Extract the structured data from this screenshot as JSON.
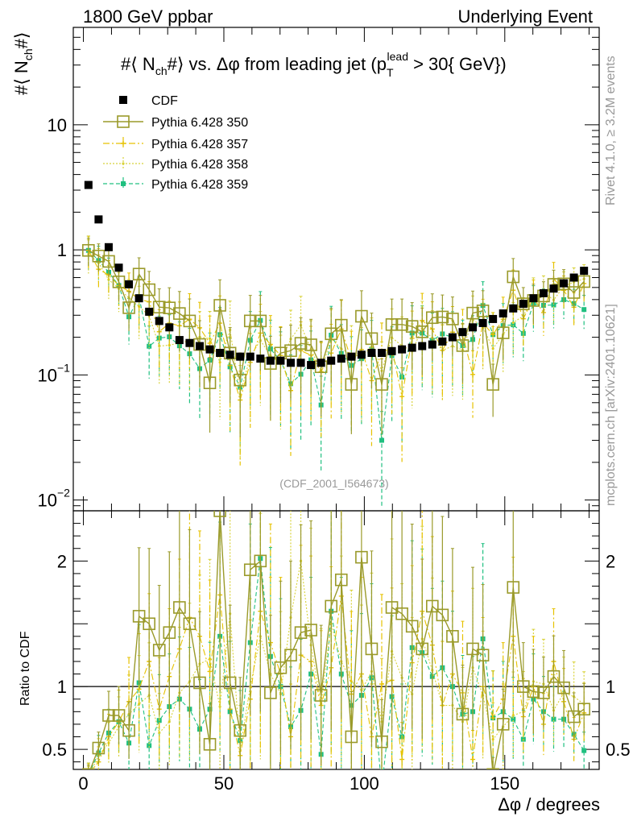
{
  "header": {
    "left": "1800 GeV ppbar",
    "right": "Underlying Event"
  },
  "side": {
    "rivet": "Rivet 4.1.0, ≥ 3.2M events",
    "mcplots": "mcplots.cern.ch [arXiv:2401.10621]"
  },
  "colors": {
    "cdf": "#000000",
    "p350": "#9a9a2a",
    "p357": "#e6c200",
    "p358": "#d8d23a",
    "p359": "#20c080",
    "axis": "#000000",
    "watermark": "#999999"
  },
  "chart_data": {
    "type": "scatter",
    "title": "#⟨ N_ch #⟩ vs. Δφ from leading jet (p_T^lead > 30{ GeV})",
    "title_parts": {
      "a": "#⟨ N",
      "b": "ch",
      "c": "#⟩ vs. Δφ from leading jet  (p",
      "d": "T",
      "e": "lead",
      "f": " > 30{ GeV})"
    },
    "ylabel_parts": {
      "a": "#⟨ N",
      "b": "ch",
      "c": "#⟩"
    },
    "ylabel_ratio": "Ratio to CDF",
    "xlabel": "Δφ / degrees",
    "watermark": "(CDF_2001_I564673)",
    "xlim": [
      -3.6,
      183.6
    ],
    "ylim": [
      0.0082,
      60
    ],
    "ylim_ratio": [
      0.34,
      2.4
    ],
    "yscale": "log",
    "main_ticks": [
      {
        "v": 10,
        "label": "10"
      },
      {
        "v": 1,
        "label": "1"
      }
    ],
    "main_ticks_exp": [
      {
        "v": 0.1,
        "base": "10",
        "exp": "−1"
      },
      {
        "v": 0.01,
        "base": "10",
        "exp": "−2"
      }
    ],
    "ratio_ticks": [
      {
        "v": 2,
        "label": "2"
      },
      {
        "v": 1,
        "label": "1"
      },
      {
        "v": 0.5,
        "label": "0.5"
      }
    ],
    "x_ticks": [
      {
        "v": 0,
        "label": "0"
      },
      {
        "v": 50,
        "label": "50"
      },
      {
        "v": 100,
        "label": "100"
      },
      {
        "v": 150,
        "label": "150"
      }
    ],
    "x": [
      1.8,
      5.4,
      9.0,
      12.6,
      16.2,
      19.8,
      23.4,
      27.0,
      30.6,
      34.2,
      37.8,
      41.4,
      45.0,
      48.6,
      52.2,
      55.8,
      59.4,
      63.0,
      66.6,
      70.2,
      73.8,
      77.4,
      81.0,
      84.6,
      88.2,
      91.8,
      95.4,
      99.0,
      102.6,
      106.2,
      109.8,
      113.4,
      117.0,
      120.6,
      124.2,
      127.8,
      131.4,
      135.0,
      138.6,
      142.2,
      145.8,
      149.4,
      153.0,
      156.6,
      160.2,
      163.8,
      167.4,
      171.0,
      174.6,
      178.2
    ],
    "series": [
      {
        "name": "CDF",
        "key": "cdf",
        "style": "square",
        "values": [
          3.3,
          1.75,
          1.05,
          0.72,
          0.53,
          0.41,
          0.32,
          0.27,
          0.24,
          0.19,
          0.18,
          0.17,
          0.16,
          0.15,
          0.145,
          0.14,
          0.14,
          0.135,
          0.13,
          0.13,
          0.125,
          0.125,
          0.12,
          0.125,
          0.13,
          0.135,
          0.14,
          0.145,
          0.15,
          0.15,
          0.155,
          0.16,
          0.165,
          0.17,
          0.175,
          0.185,
          0.2,
          0.22,
          0.24,
          0.26,
          0.28,
          0.31,
          0.34,
          0.37,
          0.41,
          0.45,
          0.49,
          0.54,
          0.6,
          0.68
        ],
        "errors": [
          0.15,
          0.08,
          0.04,
          0.03,
          0.02,
          0.015,
          0.012,
          0.01,
          0.009,
          0.008,
          0.007,
          0.007,
          0.006,
          0.006,
          0.006,
          0.006,
          0.006,
          0.006,
          0.005,
          0.005,
          0.005,
          0.005,
          0.005,
          0.005,
          0.005,
          0.006,
          0.006,
          0.006,
          0.006,
          0.006,
          0.006,
          0.007,
          0.007,
          0.007,
          0.007,
          0.008,
          0.008,
          0.009,
          0.01,
          0.011,
          0.012,
          0.013,
          0.014,
          0.016,
          0.018,
          0.02,
          0.022,
          0.025,
          0.028,
          0.03
        ]
      },
      {
        "name": "Pythia 6.428 350",
        "key": "p350",
        "style": "open-square",
        "dash": "",
        "ratio": [
          0.3,
          0.51,
          0.77,
          0.77,
          0.65,
          1.56,
          1.5,
          1.29,
          1.43,
          1.63,
          1.5,
          1.03,
          0.54,
          2.4,
          1.03,
          0.65,
          1.93,
          2.0,
          0.95,
          1.15,
          1.25,
          1.43,
          1.45,
          0.93,
          1.64,
          1.85,
          0.6,
          2.03,
          1.3,
          0.56,
          1.63,
          1.58,
          1.48,
          1.3,
          1.64,
          1.57,
          1.4,
          0.78,
          1.3,
          1.25,
          0.3,
          0.7,
          1.79,
          1.0,
          0.96,
          0.95,
          1.08,
          0.99,
          0.76,
          0.82
        ],
        "rel_err": [
          0.25,
          0.25,
          0.25,
          0.3,
          0.35,
          0.35,
          0.4,
          0.4,
          0.45,
          0.5,
          0.5,
          0.55,
          0.6,
          0.6,
          0.6,
          0.65,
          0.6,
          0.6,
          0.65,
          0.6,
          0.6,
          0.6,
          0.6,
          0.6,
          0.6,
          0.6,
          0.6,
          0.6,
          0.6,
          0.6,
          0.6,
          0.6,
          0.55,
          0.55,
          0.55,
          0.5,
          0.5,
          0.5,
          0.5,
          0.45,
          0.45,
          0.4,
          0.4,
          0.35,
          0.35,
          0.3,
          0.3,
          0.3,
          0.25,
          0.25
        ]
      },
      {
        "name": "Pythia 6.428 357",
        "key": "p357",
        "style": "star",
        "dash": "8,3,2,3",
        "ratio": [
          0.3,
          0.4,
          0.6,
          0.72,
          0.88,
          0.98,
          1.2,
          0.82,
          1.08,
          1.3,
          1.55,
          1.4,
          1.12,
          1.73,
          0.82,
          0.45,
          0.9,
          1.6,
          1.35,
          1.1,
          0.6,
          1.25,
          1.2,
          0.85,
          1.15,
          1.72,
          0.94,
          1.1,
          0.6,
          1.02,
          1.05,
          0.42,
          1.19,
          1.6,
          1.33,
          0.85,
          1.1,
          0.95,
          0.42,
          1.0,
          0.75,
          0.9,
          1.4,
          0.76,
          1.0,
          0.7,
          1.2,
          0.88,
          0.58,
          0.79
        ],
        "rel_err": [
          0.3,
          0.3,
          0.3,
          0.35,
          0.4,
          0.45,
          0.45,
          0.5,
          0.5,
          0.55,
          0.6,
          0.6,
          0.65,
          0.65,
          0.7,
          0.7,
          0.7,
          0.7,
          0.7,
          0.7,
          0.7,
          0.7,
          0.7,
          0.7,
          0.7,
          0.7,
          0.7,
          0.7,
          0.7,
          0.7,
          0.7,
          0.7,
          0.65,
          0.65,
          0.65,
          0.6,
          0.6,
          0.6,
          0.55,
          0.55,
          0.5,
          0.5,
          0.45,
          0.4,
          0.4,
          0.35,
          0.35,
          0.3,
          0.3,
          0.3
        ]
      },
      {
        "name": "Pythia 6.428 358",
        "key": "p358",
        "style": "dot",
        "dash": "2,2",
        "ratio": [
          0.28,
          0.45,
          0.55,
          0.68,
          0.78,
          0.86,
          0.93,
          0.63,
          0.72,
          0.95,
          1.04,
          1.18,
          1.22,
          0.84,
          1.58,
          0.5,
          1.0,
          1.4,
          1.1,
          0.94,
          1.55,
          2.0,
          1.33,
          0.86,
          1.5,
          1.2,
          1.04,
          0.97,
          1.12,
          0.72,
          1.28,
          1.07,
          0.94,
          1.38,
          1.13,
          0.85,
          0.85,
          0.72,
          1.15,
          0.93,
          0.58,
          0.68,
          0.77,
          0.8,
          1.04,
          1.02,
          0.81,
          0.95,
          0.92,
          0.86
        ],
        "rel_err": [
          0.3,
          0.3,
          0.3,
          0.35,
          0.4,
          0.45,
          0.45,
          0.5,
          0.5,
          0.55,
          0.6,
          0.6,
          0.65,
          0.65,
          0.7,
          0.7,
          0.7,
          0.7,
          0.7,
          0.7,
          0.7,
          0.7,
          0.7,
          0.7,
          0.7,
          0.7,
          0.7,
          0.7,
          0.7,
          0.7,
          0.7,
          0.7,
          0.65,
          0.65,
          0.65,
          0.6,
          0.6,
          0.6,
          0.55,
          0.55,
          0.5,
          0.5,
          0.45,
          0.4,
          0.4,
          0.35,
          0.35,
          0.3,
          0.3,
          0.3
        ]
      },
      {
        "name": "Pythia 6.428 359",
        "key": "p359",
        "style": "small-square",
        "dash": "5,3",
        "ratio": [
          0.3,
          0.47,
          0.63,
          0.72,
          0.55,
          1.03,
          0.53,
          0.73,
          0.84,
          0.9,
          0.82,
          0.66,
          0.82,
          1.4,
          0.8,
          0.57,
          1.35,
          2.02,
          1.24,
          1.0,
          0.68,
          0.81,
          1.1,
          0.46,
          1.6,
          1.1,
          0.85,
          0.93,
          1.07,
          0.2,
          0.92,
          0.6,
          1.31,
          1.27,
          1.08,
          1.15,
          1.0,
          0.78,
          0.8,
          1.38,
          0.75,
          0.8,
          0.74,
          0.58,
          0.9,
          0.8,
          0.74,
          0.74,
          0.62,
          0.49
        ],
        "rel_err": [
          0.3,
          0.3,
          0.3,
          0.35,
          0.4,
          0.45,
          0.45,
          0.5,
          0.5,
          0.55,
          0.6,
          0.6,
          0.65,
          0.65,
          0.7,
          0.7,
          0.7,
          0.7,
          0.7,
          0.7,
          0.7,
          0.7,
          0.7,
          0.7,
          0.7,
          0.7,
          0.7,
          0.7,
          0.7,
          0.7,
          0.7,
          0.7,
          0.65,
          0.65,
          0.65,
          0.6,
          0.6,
          0.6,
          0.55,
          0.55,
          0.5,
          0.5,
          0.45,
          0.4,
          0.4,
          0.35,
          0.35,
          0.3,
          0.3,
          0.3
        ]
      }
    ]
  }
}
